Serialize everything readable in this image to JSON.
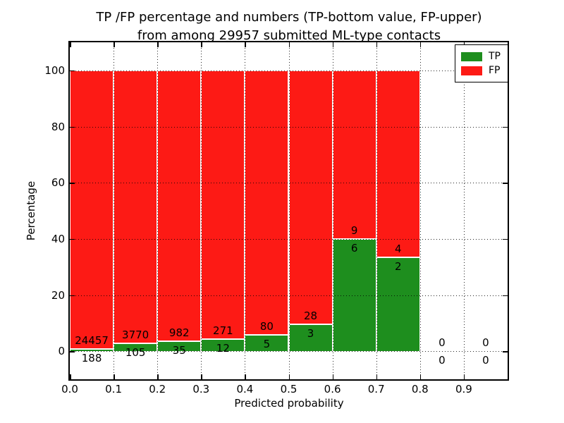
{
  "title": {
    "line1": "TP /FP percentage and numbers (TP-bottom value, FP-upper)",
    "line2": "from among 29957 submitted ML-type contacts"
  },
  "axes": {
    "xlabel": "Predicted probability",
    "ylabel": "Percentage"
  },
  "chart_data": {
    "type": "bar",
    "stacked": true,
    "normalized": "percent of bin total",
    "title": "TP /FP percentage and numbers (TP-bottom value, FP-upper) from among 29957 submitted ML-type contacts",
    "xlabel": "Predicted probability",
    "ylabel": "Percentage",
    "xlim": [
      0.0,
      1.0
    ],
    "ylim": [
      -10,
      110
    ],
    "grid": "dotted",
    "legend_position": "upper right",
    "xticks": [
      0.0,
      0.1,
      0.2,
      0.3,
      0.4,
      0.5,
      0.6,
      0.7,
      0.8,
      0.9
    ],
    "xtick_labels": [
      "0.0",
      "0.1",
      "0.2",
      "0.3",
      "0.4",
      "0.5",
      "0.6",
      "0.7",
      "0.8",
      "0.9"
    ],
    "yticks": [
      0,
      20,
      40,
      60,
      80,
      100
    ],
    "ytick_labels": [
      "0",
      "20",
      "40",
      "60",
      "80",
      "100"
    ],
    "series": [
      {
        "name": "TP",
        "color": "#1e8e1e"
      },
      {
        "name": "FP",
        "color": "#fd1a15"
      }
    ],
    "bar_edge_color": "#ffffff",
    "bins": [
      {
        "x0": 0.0,
        "x1": 0.1,
        "tp_count": 188,
        "fp_count": 24457,
        "tp_percent": 0.76,
        "fp_percent": 99.24
      },
      {
        "x0": 0.1,
        "x1": 0.2,
        "tp_count": 105,
        "fp_count": 3770,
        "tp_percent": 2.71,
        "fp_percent": 97.29
      },
      {
        "x0": 0.2,
        "x1": 0.3,
        "tp_count": 35,
        "fp_count": 982,
        "tp_percent": 3.44,
        "fp_percent": 96.56
      },
      {
        "x0": 0.3,
        "x1": 0.4,
        "tp_count": 12,
        "fp_count": 271,
        "tp_percent": 4.24,
        "fp_percent": 95.76
      },
      {
        "x0": 0.4,
        "x1": 0.5,
        "tp_count": 5,
        "fp_count": 80,
        "tp_percent": 5.88,
        "fp_percent": 94.12
      },
      {
        "x0": 0.5,
        "x1": 0.6,
        "tp_count": 3,
        "fp_count": 28,
        "tp_percent": 9.68,
        "fp_percent": 90.32
      },
      {
        "x0": 0.6,
        "x1": 0.7,
        "tp_count": 6,
        "fp_count": 9,
        "tp_percent": 40.0,
        "fp_percent": 60.0
      },
      {
        "x0": 0.7,
        "x1": 0.8,
        "tp_count": 2,
        "fp_count": 4,
        "tp_percent": 33.33,
        "fp_percent": 66.67
      },
      {
        "x0": 0.8,
        "x1": 0.9,
        "tp_count": 0,
        "fp_count": 0,
        "tp_percent": 0,
        "fp_percent": 0
      },
      {
        "x0": 0.9,
        "x1": 1.0,
        "tp_count": 0,
        "fp_count": 0,
        "tp_percent": 0,
        "fp_percent": 0
      }
    ]
  }
}
